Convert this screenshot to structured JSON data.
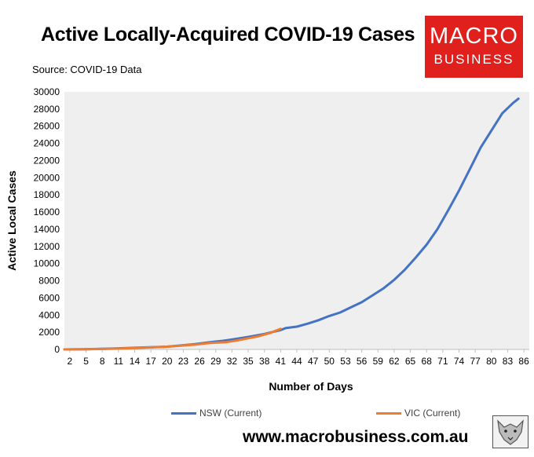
{
  "header": {
    "title": "Active Locally-Acquired COVID-19 Cases",
    "source": "Source: COVID-19 Data"
  },
  "logo": {
    "line1": "MACRO",
    "line2": "BUSINESS"
  },
  "footer": {
    "url": "www.macrobusiness.com.au"
  },
  "colors": {
    "nsw": "#4472c4",
    "vic": "#ed7d31",
    "plot_bg": "#efefef",
    "logo_bg": "#e0201c"
  },
  "icons": {
    "logo": "macro-business-logo",
    "wolf": "wolf-icon"
  },
  "chart_data": {
    "type": "line",
    "xlabel": "Number of Days",
    "ylabel": "Active Local Cases",
    "xlim": [
      1,
      87
    ],
    "ylim": [
      0,
      30000
    ],
    "x_ticks": [
      2,
      5,
      8,
      11,
      14,
      17,
      20,
      23,
      26,
      29,
      32,
      35,
      38,
      41,
      44,
      47,
      50,
      53,
      56,
      59,
      62,
      65,
      68,
      71,
      74,
      77,
      80,
      83,
      86
    ],
    "y_ticks": [
      0,
      2000,
      4000,
      6000,
      8000,
      10000,
      12000,
      14000,
      16000,
      18000,
      20000,
      22000,
      24000,
      26000,
      28000,
      30000
    ],
    "legend_position": "bottom",
    "series": [
      {
        "name": "NSW (Current)",
        "color": "#4472c4",
        "x": [
          1,
          5,
          10,
          15,
          20,
          25,
          28,
          30,
          32,
          35,
          38,
          40,
          41,
          42,
          44,
          46,
          48,
          50,
          52,
          54,
          56,
          58,
          60,
          62,
          64,
          66,
          68,
          70,
          72,
          74,
          76,
          78,
          80,
          82,
          84,
          85
        ],
        "y": [
          0,
          30,
          100,
          220,
          320,
          600,
          850,
          980,
          1150,
          1450,
          1800,
          2100,
          2250,
          2500,
          2650,
          3000,
          3400,
          3900,
          4300,
          4900,
          5500,
          6300,
          7100,
          8100,
          9300,
          10700,
          12200,
          14000,
          16200,
          18500,
          21000,
          23500,
          25500,
          27500,
          28700,
          29200
        ]
      },
      {
        "name": "VIC (Current)",
        "color": "#ed7d31",
        "x": [
          1,
          5,
          10,
          15,
          20,
          25,
          28,
          31,
          33,
          35,
          37,
          39,
          41
        ],
        "y": [
          0,
          20,
          80,
          180,
          320,
          550,
          750,
          850,
          1050,
          1300,
          1550,
          1900,
          2400
        ]
      }
    ]
  }
}
